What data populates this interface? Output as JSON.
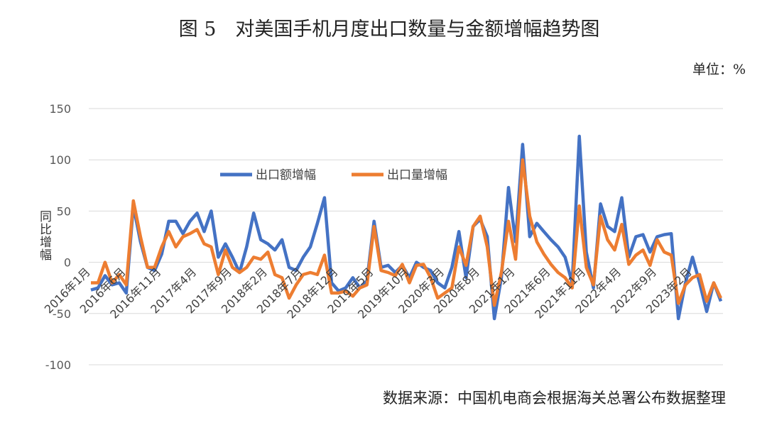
{
  "chart_data": {
    "type": "line",
    "title": "图 5　对美国手机月度出口数量与金额增幅趋势图",
    "unit_label": "单位：%",
    "y_label": "同比增幅",
    "source": "数据来源：中国机电商会根据海关总署公布数据整理",
    "categories": [
      "2016年1月",
      null,
      null,
      null,
      null,
      "2016年6月",
      null,
      null,
      null,
      null,
      "2016年11月",
      null,
      null,
      null,
      null,
      "2017年4月",
      null,
      null,
      null,
      null,
      "2017年9月",
      null,
      null,
      null,
      null,
      "2018年2月",
      null,
      null,
      null,
      null,
      "2018年7月",
      null,
      null,
      null,
      null,
      "2018年12月",
      null,
      null,
      null,
      null,
      "2019年5月",
      null,
      null,
      null,
      null,
      "2019年10月",
      null,
      null,
      null,
      null,
      "2020年3月",
      null,
      null,
      null,
      null,
      "2020年8月",
      null,
      null,
      null,
      null,
      "2021年1月",
      null,
      null,
      null,
      null,
      "2021年6月",
      null,
      null,
      null,
      null,
      "2021年11月",
      null,
      null,
      null,
      null,
      "2022年4月",
      null,
      null,
      null,
      null,
      "2022年9月",
      null,
      null,
      null,
      null,
      "2023年2月",
      null,
      null,
      null,
      null
    ],
    "series": [
      {
        "name": "出口额增幅",
        "color": "#4472c4",
        "values": [
          -27,
          -25,
          -13,
          -22,
          -20,
          -30,
          55,
          20,
          -5,
          -8,
          8,
          40,
          40,
          28,
          40,
          48,
          30,
          50,
          5,
          18,
          5,
          -10,
          15,
          48,
          22,
          18,
          12,
          22,
          -5,
          -8,
          5,
          15,
          38,
          63,
          -20,
          -28,
          -25,
          -15,
          -25,
          -18,
          40,
          -5,
          -3,
          -10,
          -3,
          -15,
          0,
          -5,
          -8,
          -20,
          -25,
          -5,
          30,
          -15,
          35,
          42,
          25,
          -55,
          -15,
          73,
          20,
          115,
          25,
          38,
          30,
          22,
          15,
          5,
          -20,
          123,
          10,
          -25,
          57,
          35,
          30,
          63,
          5,
          25,
          27,
          10,
          25,
          27,
          28,
          -55,
          -20,
          5,
          -20,
          -48,
          -20,
          -38
        ]
      },
      {
        "name": "出口量增幅",
        "color": "#ed7d31",
        "values": [
          -20,
          -20,
          0,
          -20,
          -12,
          -22,
          60,
          25,
          -5,
          -5,
          15,
          30,
          15,
          25,
          28,
          32,
          18,
          15,
          -12,
          12,
          -5,
          -10,
          -5,
          5,
          3,
          10,
          -12,
          -15,
          -35,
          -22,
          -12,
          -10,
          -12,
          7,
          -30,
          -30,
          -28,
          -33,
          -25,
          -22,
          35,
          -8,
          -10,
          -13,
          -2,
          -20,
          -3,
          -2,
          -15,
          -35,
          -30,
          -25,
          15,
          -3,
          35,
          45,
          15,
          -42,
          -10,
          40,
          3,
          100,
          45,
          20,
          8,
          -2,
          -10,
          -15,
          -25,
          55,
          -5,
          -22,
          45,
          22,
          12,
          37,
          -2,
          7,
          12,
          -3,
          22,
          10,
          7,
          -40,
          -22,
          -15,
          -12,
          -38,
          -20,
          -35
        ]
      }
    ],
    "ylim": [
      -100,
      150
    ],
    "yticks": [
      -100,
      -50,
      0,
      50,
      100,
      150
    ],
    "grid": true
  }
}
